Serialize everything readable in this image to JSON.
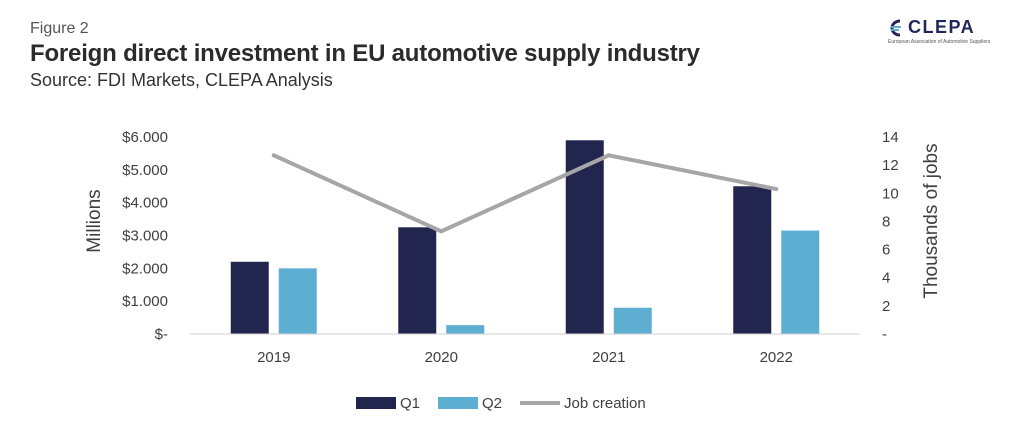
{
  "header": {
    "figure_label": "Figure 2",
    "title": "Foreign direct investment in EU automotive supply industry",
    "source": "Source: FDI Markets, CLEPA Analysis"
  },
  "logo": {
    "name": "CLEPA",
    "tagline": "European Association of Automotive Suppliers",
    "icon": "clepa-logo-icon"
  },
  "chart_data": {
    "type": "bar",
    "categories": [
      "2019",
      "2020",
      "2021",
      "2022"
    ],
    "series": [
      {
        "name": "Q1",
        "type": "bar",
        "axis": "left",
        "color": "#22264f",
        "values": [
          2200,
          3250,
          5900,
          4500
        ]
      },
      {
        "name": "Q2",
        "type": "bar",
        "axis": "left",
        "color": "#5eaed2",
        "values": [
          2000,
          270,
          800,
          3150
        ]
      },
      {
        "name": "Job creation",
        "type": "line",
        "axis": "right",
        "color": "#a6a6a6",
        "values": [
          12.7,
          7.3,
          12.7,
          10.3
        ]
      }
    ],
    "ylabel": "Millions",
    "y2label": "Thousands of jobs",
    "ylim": [
      0,
      6000
    ],
    "y2lim": [
      0,
      14
    ],
    "yticks": [
      "$-",
      "$1.000",
      "$2.000",
      "$3.000",
      "$4.000",
      "$5.000",
      "$6.000"
    ],
    "y2ticks": [
      "-",
      "2",
      "4",
      "6",
      "8",
      "10",
      "12",
      "14"
    ],
    "legend": "bottom",
    "grid": false
  }
}
